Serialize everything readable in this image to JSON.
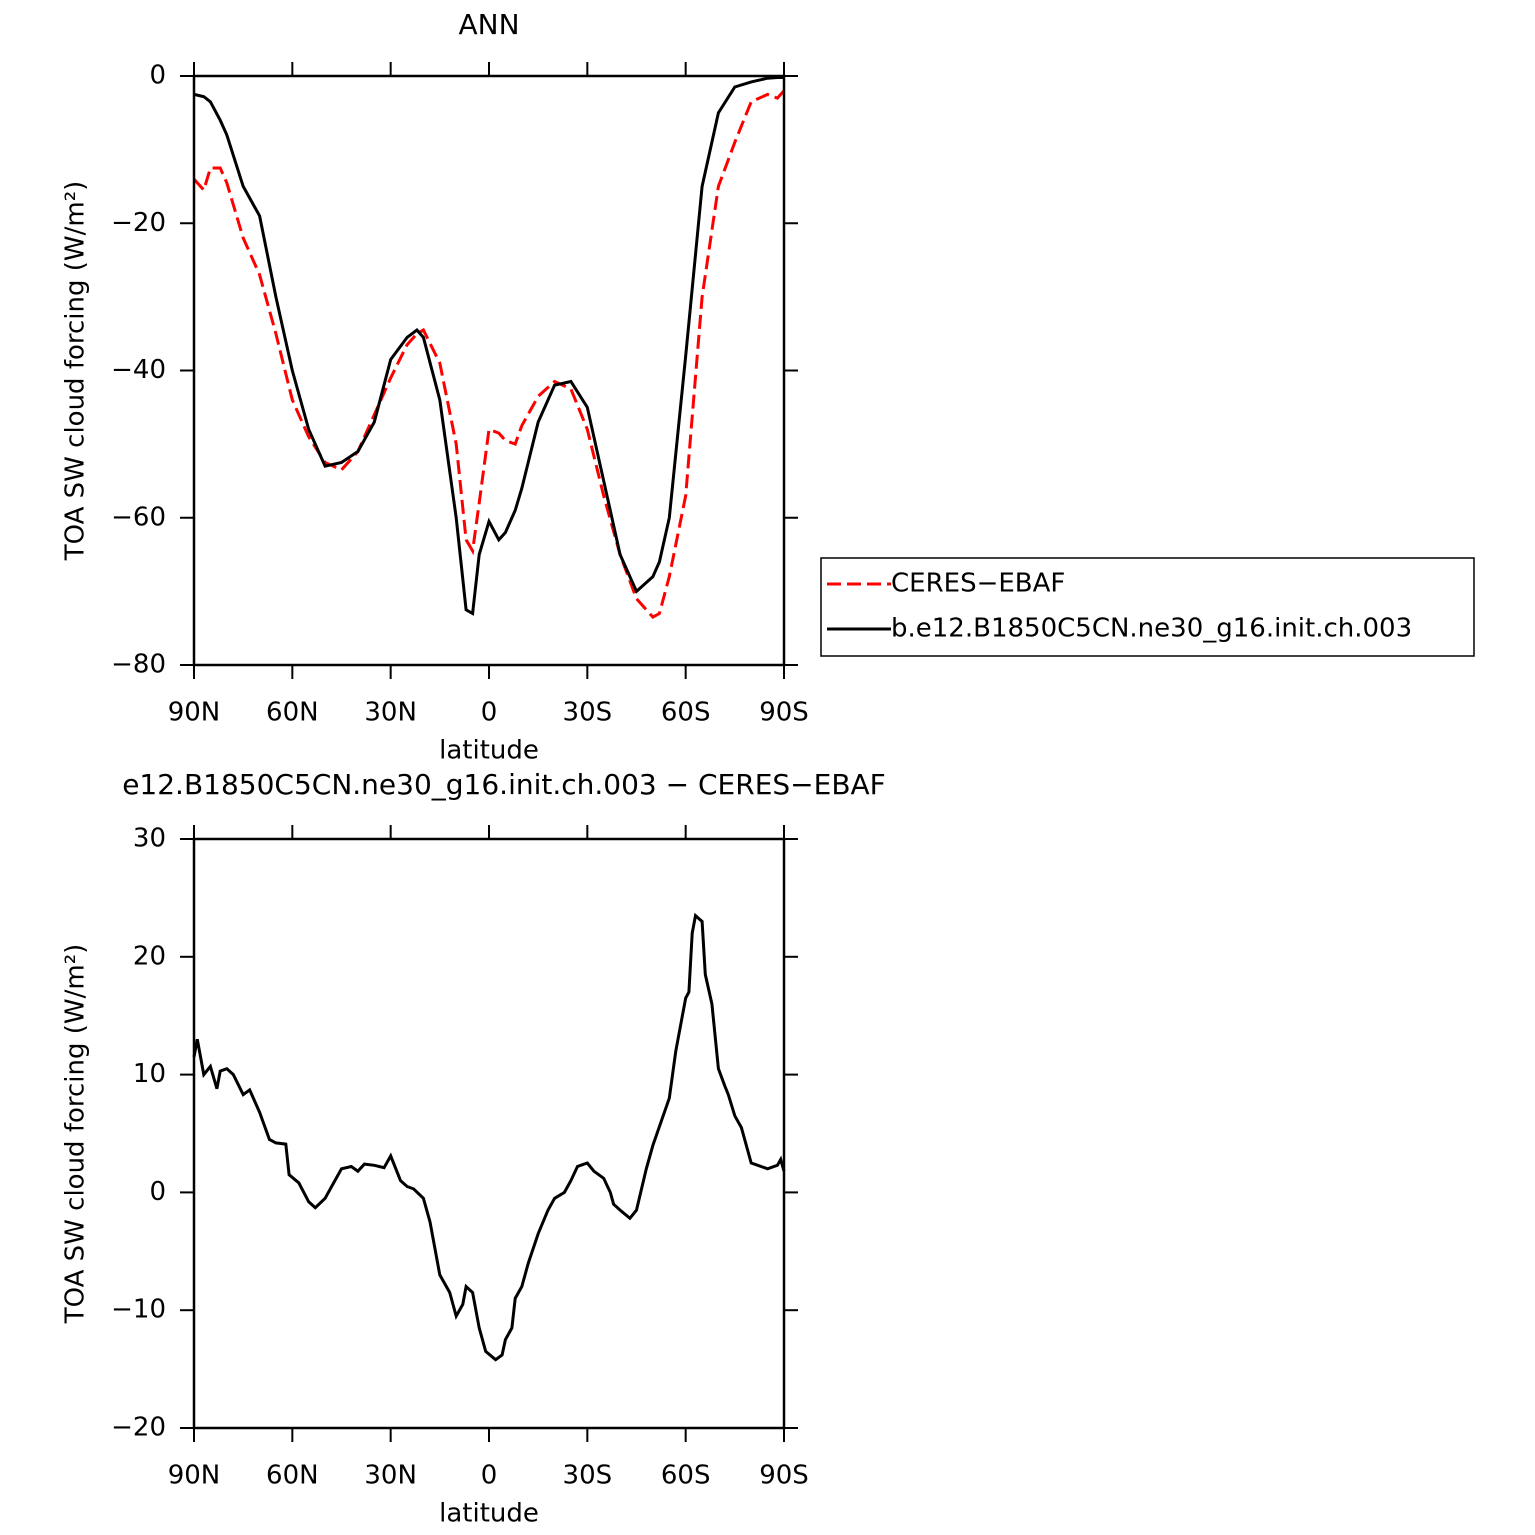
{
  "chart_data": [
    {
      "type": "line",
      "title": "ANN",
      "ylabel": "TOA SW cloud forcing (W/m²)",
      "xlabel": "latitude",
      "x": [
        90,
        87,
        85,
        82,
        80,
        75,
        70,
        65,
        60,
        55,
        50,
        45,
        40,
        35,
        30,
        25,
        22,
        20,
        15,
        10,
        7,
        5,
        3,
        0,
        -3,
        -5,
        -8,
        -10,
        -15,
        -20,
        -25,
        -30,
        -35,
        -40,
        -45,
        -50,
        -52,
        -55,
        -60,
        -65,
        -70,
        -75,
        -80,
        -85,
        -88,
        -90
      ],
      "xlim": [
        90,
        -90
      ],
      "xticks": [
        {
          "value": 90,
          "label": "90N"
        },
        {
          "value": 60,
          "label": "60N"
        },
        {
          "value": 30,
          "label": "30N"
        },
        0,
        {
          "value": -30,
          "label": "30S"
        },
        {
          "value": -60,
          "label": "60S"
        },
        {
          "value": -90,
          "label": "90S"
        }
      ],
      "ylim": [
        -80,
        0
      ],
      "yticks": [
        {
          "value": -80,
          "label": "−80"
        },
        {
          "value": -60,
          "label": "−60"
        },
        {
          "value": -40,
          "label": "−40"
        },
        {
          "value": -20,
          "label": "−20"
        },
        0
      ],
      "legend": "right",
      "series": [
        {
          "name": "CERES−EBAF",
          "color": "#ff0000",
          "dash": "dashed",
          "values": [
            -14,
            -15.5,
            -12.5,
            -12.5,
            -14.5,
            -22,
            -27,
            -35,
            -44,
            -49,
            -52.5,
            -53.5,
            -51,
            -46,
            -41,
            -36.5,
            -35,
            -34.5,
            -39,
            -50,
            -63,
            -64.5,
            -58,
            -48,
            -48.5,
            -49.5,
            -50,
            -47.5,
            -43.5,
            -41.5,
            -42.5,
            -48,
            -57,
            -65,
            -71,
            -73.5,
            -73,
            -68,
            -57,
            -30,
            -15,
            -9,
            -3.5,
            -2.5,
            -3,
            -2
          ]
        },
        {
          "name": "b.e12.B1850C5CN.ne30_g16.init.ch.003",
          "color": "#000000",
          "dash": "solid",
          "values": [
            -2.5,
            -2.8,
            -3.5,
            -6,
            -8,
            -15,
            -19,
            -30,
            -40,
            -48,
            -53,
            -52.5,
            -51,
            -47,
            -38.5,
            -35.5,
            -34.5,
            -35.5,
            -44,
            -60,
            -72.5,
            -73,
            -65,
            -60.5,
            -63,
            -62,
            -59,
            -56,
            -47,
            -42,
            -41.5,
            -45,
            -55,
            -65,
            -70,
            -68,
            -66,
            -60,
            -38,
            -15,
            -5,
            -1.5,
            -0.8,
            -0.3,
            -0.2,
            -0.2
          ]
        }
      ]
    },
    {
      "type": "line",
      "title": "e12.B1850C5CN.ne30_g16.init.ch.003 − CERES−EBAF",
      "ylabel": "TOA SW cloud forcing (W/m²)",
      "xlabel": "latitude",
      "x": [
        90,
        89,
        87,
        85,
        83,
        82,
        80,
        78,
        75,
        73,
        70,
        67,
        65,
        62,
        61,
        58,
        55,
        53,
        50,
        47,
        45,
        42,
        40,
        38,
        35,
        32,
        30,
        27,
        25,
        23,
        20,
        18,
        15,
        12,
        10,
        8,
        7,
        5,
        3,
        1,
        -2,
        -4,
        -5,
        -7,
        -8,
        -10,
        -12,
        -15,
        -18,
        -20,
        -23,
        -25,
        -27,
        -30,
        -32,
        -35,
        -37,
        -38,
        -40,
        -43,
        -45,
        -48,
        -50,
        -55,
        -57,
        -60,
        -61,
        -62,
        -63,
        -65,
        -66,
        -68,
        -70,
        -72,
        -73,
        -75,
        -77,
        -80,
        -82,
        -85,
        -88,
        -89,
        -90
      ],
      "xlim": [
        90,
        -90
      ],
      "xticks": [
        {
          "value": 90,
          "label": "90N"
        },
        {
          "value": 60,
          "label": "60N"
        },
        {
          "value": 30,
          "label": "30N"
        },
        0,
        {
          "value": -30,
          "label": "30S"
        },
        {
          "value": -60,
          "label": "60S"
        },
        {
          "value": -90,
          "label": "90S"
        }
      ],
      "ylim": [
        -20,
        30
      ],
      "yticks": [
        {
          "value": -20,
          "label": "−20"
        },
        {
          "value": -10,
          "label": "−10"
        },
        0,
        10,
        20,
        30
      ],
      "color": "#000000",
      "values": [
        11.5,
        13,
        10,
        10.7,
        8.8,
        10.3,
        10.5,
        10,
        8.3,
        8.7,
        6.8,
        4.5,
        4.2,
        4.1,
        1.5,
        0.8,
        -0.8,
        -1.3,
        -0.5,
        1,
        2,
        2.2,
        1.8,
        2.4,
        2.3,
        2.1,
        3.1,
        1,
        0.5,
        0.3,
        -0.5,
        -2.5,
        -7,
        -8.5,
        -10.5,
        -9.5,
        -8,
        -8.5,
        -11.5,
        -13.5,
        -14.2,
        -13.8,
        -12.5,
        -11.5,
        -9,
        -8,
        -6,
        -3.5,
        -1.5,
        -0.5,
        0,
        1,
        2.2,
        2.5,
        1.8,
        1.2,
        0,
        -1,
        -1.5,
        -2.2,
        -1.5,
        2,
        4,
        8,
        12,
        16.5,
        17,
        22,
        23.5,
        23,
        18.5,
        16,
        10.5,
        9,
        8.3,
        6.5,
        5.5,
        2.5,
        2.3,
        2,
        2.3,
        2.8,
        1.8
      ]
    }
  ]
}
